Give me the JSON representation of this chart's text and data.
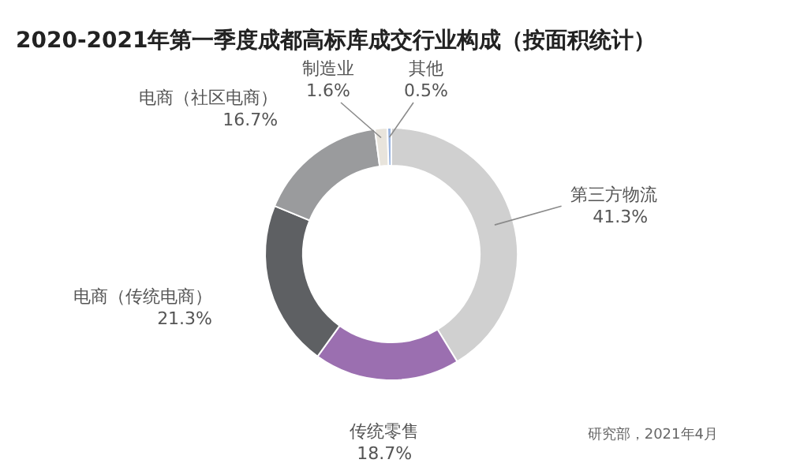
{
  "chart_data": {
    "type": "donut",
    "title": "2020-2021年第一季度成都高标库成交行业构成（按面积统计）",
    "categories": [
      "第三方物流",
      "传统零售",
      "电商（传统电商）",
      "电商（社区电商）",
      "制造业",
      "其他"
    ],
    "values": [
      41.3,
      18.7,
      21.3,
      16.7,
      1.6,
      0.5
    ],
    "colors": [
      "#d0d0d0",
      "#9b6fb0",
      "#5e6063",
      "#9a9b9d",
      "#e8e4dc",
      "#9bb5e0"
    ],
    "value_labels": [
      "41.3%",
      "18.7%",
      "21.3%",
      "16.7%",
      "1.6%",
      "0.5%"
    ],
    "legend": false,
    "annotations": [
      "研究部，2021年4月"
    ]
  }
}
